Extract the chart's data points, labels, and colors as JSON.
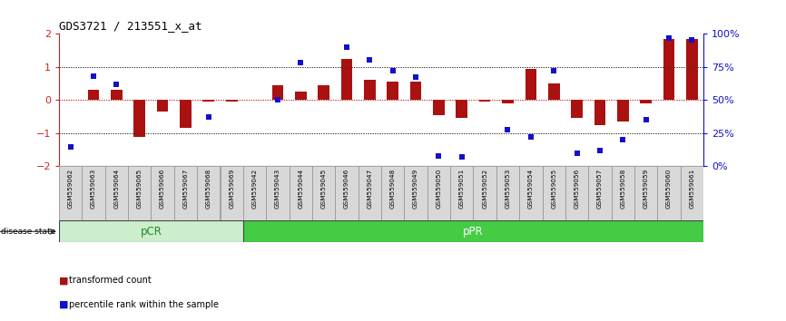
{
  "title": "GDS3721 / 213551_x_at",
  "samples": [
    "GSM559062",
    "GSM559063",
    "GSM559064",
    "GSM559065",
    "GSM559066",
    "GSM559067",
    "GSM559068",
    "GSM559069",
    "GSM559042",
    "GSM559043",
    "GSM559044",
    "GSM559045",
    "GSM559046",
    "GSM559047",
    "GSM559048",
    "GSM559049",
    "GSM559050",
    "GSM559051",
    "GSM559052",
    "GSM559053",
    "GSM559054",
    "GSM559055",
    "GSM559056",
    "GSM559057",
    "GSM559058",
    "GSM559059",
    "GSM559060",
    "GSM559061"
  ],
  "transformed_count": [
    0.0,
    0.3,
    0.3,
    -1.1,
    -0.35,
    -0.85,
    -0.05,
    -0.05,
    0.0,
    0.45,
    0.25,
    0.45,
    1.25,
    0.6,
    0.55,
    0.55,
    -0.45,
    -0.55,
    -0.05,
    -0.1,
    0.95,
    0.5,
    -0.55,
    -0.75,
    -0.65,
    -0.1,
    1.85,
    1.85
  ],
  "percentile_rank": [
    15,
    68,
    62,
    null,
    null,
    null,
    37,
    null,
    null,
    50,
    78,
    null,
    90,
    80,
    72,
    67,
    8,
    7,
    null,
    28,
    22,
    72,
    10,
    12,
    20,
    35,
    97,
    95
  ],
  "pCR_count": 8,
  "pPR_count": 20,
  "bar_color": "#aa1111",
  "dot_color": "#1111cc",
  "pCR_fill": "#cceecc",
  "pPR_fill": "#44cc44",
  "sample_box_fill": "#d8d8d8",
  "sample_box_edge": "#888888",
  "left_tick_color": "#cc2222",
  "right_tick_color": "#1111cc"
}
